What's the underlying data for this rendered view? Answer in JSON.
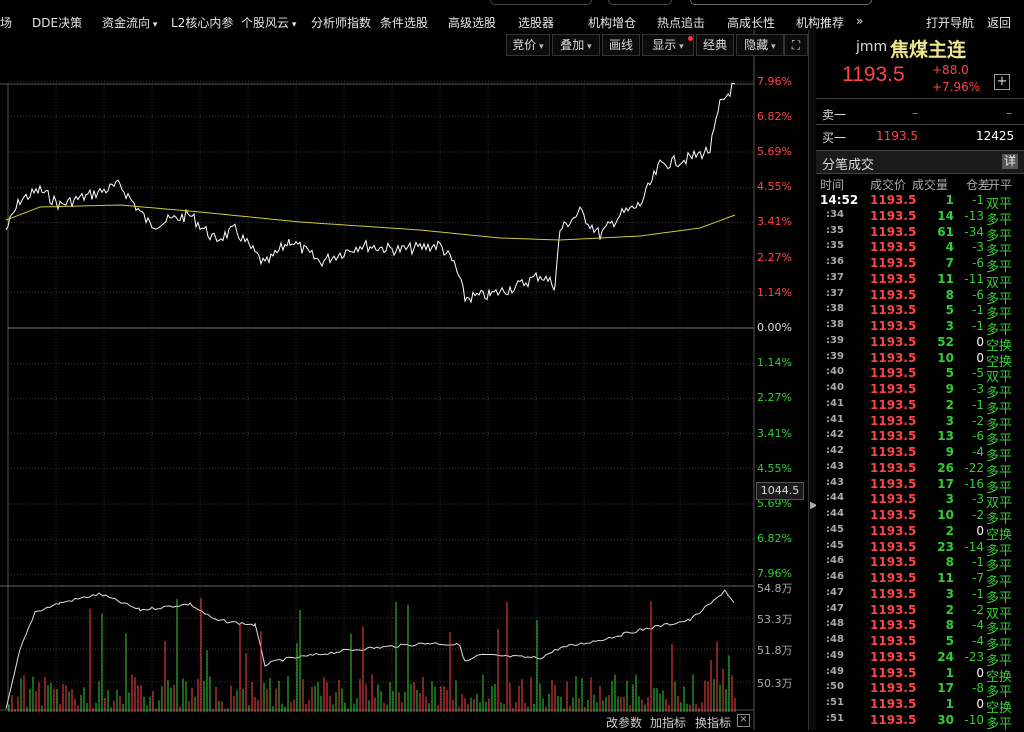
{
  "topbar": {
    "items": [
      {
        "label": "场",
        "dd": false
      },
      {
        "label": "DDE决策",
        "dd": false
      },
      {
        "label": "资金流向",
        "dd": true
      },
      {
        "label": "L2核心内参",
        "dd": false
      },
      {
        "label": "个股风云",
        "dd": true
      },
      {
        "label": "分析师指数",
        "dd": false
      },
      {
        "label": "条件选股",
        "dd": false
      },
      {
        "label": "高级选股",
        "dd": false
      },
      {
        "label": "选股器",
        "dd": false
      },
      {
        "label": "机构增仓",
        "dd": false
      },
      {
        "label": "热点追击",
        "dd": false
      },
      {
        "label": "高成长性",
        "dd": false
      },
      {
        "label": "机构推荐",
        "dd": false
      },
      {
        "label": "»",
        "dd": false
      }
    ],
    "open_nav": "打开导航",
    "back": "返回"
  },
  "toolbar": {
    "buttons": [
      {
        "label": "竞价",
        "dd": true
      },
      {
        "label": "叠加",
        "dd": true
      },
      {
        "label": "画线",
        "dd": false
      },
      {
        "label": "显示",
        "dd": true
      },
      {
        "label": "经典",
        "dd": false
      },
      {
        "label": "隐藏",
        "dd": true
      }
    ],
    "expand_icon": "expand-icon"
  },
  "chart": {
    "up_labels": [
      "7.96%",
      "6.82%",
      "5.69%",
      "4.55%",
      "3.41%",
      "2.27%",
      "1.14%"
    ],
    "zero_label": "0.00%",
    "down_labels": [
      "1.14%",
      "2.27%",
      "3.41%",
      "4.55%",
      "5.69%",
      "6.82%",
      "7.96%"
    ],
    "price_box": "1044.5",
    "vol_labels": [
      "54.8万",
      "53.3万",
      "51.8万",
      "50.3万"
    ],
    "colors": {
      "up": "#ff4444",
      "down": "#33cc33",
      "price_line": "#ffffff",
      "avg_line": "#cccc33",
      "grid": "#3a3a3a"
    }
  },
  "bottom_buttons": [
    "改参数",
    "加指标",
    "换指标"
  ],
  "quote": {
    "code": "jmm",
    "name": "焦煤主连",
    "price": "1193.5",
    "change": "+88.0",
    "change_pct": "+7.96%",
    "add_icon": "plus-icon",
    "sell1_label": "卖一",
    "sell1_price": "–",
    "sell1_vol": "–",
    "buy1_label": "买一",
    "buy1_price": "1193.5",
    "buy1_vol": "12425",
    "ticks_title": "分笔成交",
    "detail_btn": "详"
  },
  "ticks": {
    "headers": [
      "时间",
      "成交价",
      "成交量",
      "仓差",
      "开平"
    ],
    "rows": [
      {
        "t": "14:52",
        "p": "1193.5",
        "v": "1",
        "d": "-1",
        "o": "双平"
      },
      {
        "t": ":34",
        "p": "1193.5",
        "v": "14",
        "d": "-13",
        "o": "多平"
      },
      {
        "t": ":35",
        "p": "1193.5",
        "v": "61",
        "d": "-34",
        "o": "多平"
      },
      {
        "t": ":35",
        "p": "1193.5",
        "v": "4",
        "d": "-3",
        "o": "多平"
      },
      {
        "t": ":36",
        "p": "1193.5",
        "v": "7",
        "d": "-6",
        "o": "多平"
      },
      {
        "t": ":37",
        "p": "1193.5",
        "v": "11",
        "d": "-11",
        "o": "双平"
      },
      {
        "t": ":37",
        "p": "1193.5",
        "v": "8",
        "d": "-6",
        "o": "多平"
      },
      {
        "t": ":38",
        "p": "1193.5",
        "v": "5",
        "d": "-1",
        "o": "多平"
      },
      {
        "t": ":38",
        "p": "1193.5",
        "v": "3",
        "d": "-1",
        "o": "多平"
      },
      {
        "t": ":39",
        "p": "1193.5",
        "v": "52",
        "d": "0",
        "o": "空换"
      },
      {
        "t": ":39",
        "p": "1193.5",
        "v": "10",
        "d": "0",
        "o": "空换"
      },
      {
        "t": ":40",
        "p": "1193.5",
        "v": "5",
        "d": "-5",
        "o": "双平"
      },
      {
        "t": ":40",
        "p": "1193.5",
        "v": "9",
        "d": "-3",
        "o": "多平"
      },
      {
        "t": ":41",
        "p": "1193.5",
        "v": "2",
        "d": "-1",
        "o": "多平"
      },
      {
        "t": ":41",
        "p": "1193.5",
        "v": "3",
        "d": "-2",
        "o": "多平"
      },
      {
        "t": ":42",
        "p": "1193.5",
        "v": "13",
        "d": "-6",
        "o": "多平"
      },
      {
        "t": ":42",
        "p": "1193.5",
        "v": "9",
        "d": "-4",
        "o": "多平"
      },
      {
        "t": ":43",
        "p": "1193.5",
        "v": "26",
        "d": "-22",
        "o": "多平"
      },
      {
        "t": ":43",
        "p": "1193.5",
        "v": "17",
        "d": "-16",
        "o": "多平"
      },
      {
        "t": ":44",
        "p": "1193.5",
        "v": "3",
        "d": "-3",
        "o": "双平"
      },
      {
        "t": ":44",
        "p": "1193.5",
        "v": "10",
        "d": "-2",
        "o": "多平"
      },
      {
        "t": ":45",
        "p": "1193.5",
        "v": "2",
        "d": "0",
        "o": "空换"
      },
      {
        "t": ":45",
        "p": "1193.5",
        "v": "23",
        "d": "-14",
        "o": "多平"
      },
      {
        "t": ":46",
        "p": "1193.5",
        "v": "8",
        "d": "-1",
        "o": "多平"
      },
      {
        "t": ":46",
        "p": "1193.5",
        "v": "11",
        "d": "-7",
        "o": "多平"
      },
      {
        "t": ":47",
        "p": "1193.5",
        "v": "3",
        "d": "-1",
        "o": "多平"
      },
      {
        "t": ":47",
        "p": "1193.5",
        "v": "2",
        "d": "-2",
        "o": "双平"
      },
      {
        "t": ":48",
        "p": "1193.5",
        "v": "8",
        "d": "-4",
        "o": "多平"
      },
      {
        "t": ":48",
        "p": "1193.5",
        "v": "5",
        "d": "-4",
        "o": "多平"
      },
      {
        "t": ":49",
        "p": "1193.5",
        "v": "24",
        "d": "-23",
        "o": "多平"
      },
      {
        "t": ":49",
        "p": "1193.5",
        "v": "1",
        "d": "0",
        "o": "空换"
      },
      {
        "t": ":50",
        "p": "1193.5",
        "v": "17",
        "d": "-8",
        "o": "多平"
      },
      {
        "t": ":51",
        "p": "1193.5",
        "v": "1",
        "d": "0",
        "o": "空换"
      },
      {
        "t": ":51",
        "p": "1193.5",
        "v": "30",
        "d": "-10",
        "o": "多平"
      }
    ]
  }
}
